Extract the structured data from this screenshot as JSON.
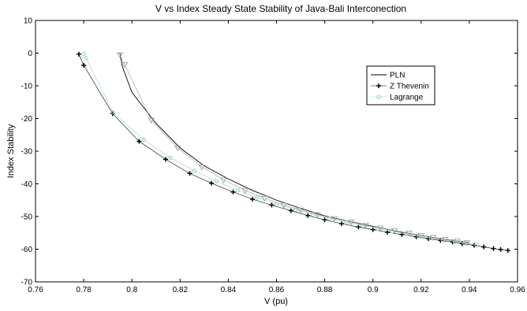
{
  "chart_data": {
    "type": "line",
    "title": "V vs Index Steady State Stability of Java-Bali Interconection",
    "xlabel": "V (pu)",
    "ylabel": "Index Stability",
    "xlim": [
      0.76,
      0.96
    ],
    "ylim": [
      -70,
      10
    ],
    "xticks": [
      0.76,
      0.78,
      0.8,
      0.82,
      0.84,
      0.86,
      0.88,
      0.9,
      0.92,
      0.94,
      0.96
    ],
    "yticks": [
      -70,
      -60,
      -50,
      -40,
      -30,
      -20,
      -10,
      0,
      10
    ],
    "xtick_labels": [
      "0.76",
      "0.78",
      "0.8",
      "0.82",
      "0.84",
      "0.86",
      "0.88",
      "0.9",
      "0.92",
      "0.94",
      "0.96"
    ],
    "ytick_labels": [
      "-70",
      "-60",
      "-50",
      "-40",
      "-30",
      "-20",
      "-10",
      "0",
      "10"
    ],
    "grid": false,
    "legend_position": "upper-right",
    "series": [
      {
        "name": "PLN",
        "color": "#000000",
        "marker": "none",
        "x": [
          0.795,
          0.796,
          0.8,
          0.81,
          0.82,
          0.83,
          0.84,
          0.85,
          0.86,
          0.87,
          0.88,
          0.89,
          0.9,
          0.91,
          0.92,
          0.93,
          0.94
        ],
        "y": [
          0.0,
          -4.0,
          -12.0,
          -21.5,
          -29.0,
          -34.5,
          -38.5,
          -42.0,
          -45.0,
          -47.5,
          -49.8,
          -51.5,
          -53.0,
          -54.5,
          -55.8,
          -57.0,
          -58.0
        ]
      },
      {
        "name": "Z Thevenin",
        "color": "#000000",
        "marker": "plus",
        "x": [
          0.778,
          0.78,
          0.792,
          0.803,
          0.814,
          0.824,
          0.833,
          0.842,
          0.85,
          0.858,
          0.866,
          0.873,
          0.88,
          0.887,
          0.894,
          0.9,
          0.906,
          0.912,
          0.918,
          0.923,
          0.928,
          0.933,
          0.937,
          0.942,
          0.946,
          0.95,
          0.953,
          0.956
        ],
        "y": [
          -0.3,
          -3.7,
          -18.5,
          -27.0,
          -32.5,
          -36.8,
          -39.8,
          -42.5,
          -44.7,
          -46.5,
          -48.2,
          -49.7,
          -51.0,
          -52.2,
          -53.2,
          -54.0,
          -54.8,
          -55.5,
          -56.2,
          -56.8,
          -57.3,
          -57.8,
          -58.3,
          -58.8,
          -59.3,
          -59.8,
          -60.1,
          -60.4
        ]
      },
      {
        "name": "Lagrange",
        "color": "#9cd4c0",
        "marker": "circle",
        "x": [
          0.78,
          0.781,
          0.792,
          0.805,
          0.816,
          0.826,
          0.835,
          0.844,
          0.852,
          0.86,
          0.868,
          0.875,
          0.882,
          0.889,
          0.896,
          0.902,
          0.908,
          0.914,
          0.919,
          0.924,
          0.929,
          0.934,
          0.938,
          0.943
        ],
        "y": [
          -0.2,
          -1.5,
          -18.0,
          -26.5,
          -32.0,
          -36.0,
          -39.2,
          -42.0,
          -44.2,
          -46.2,
          -47.9,
          -49.3,
          -50.6,
          -51.8,
          -52.8,
          -53.7,
          -54.5,
          -55.3,
          -56.0,
          -56.6,
          -57.2,
          -57.7,
          -58.2,
          -58.6
        ]
      },
      {
        "name": "",
        "color": "#9a9a9a",
        "marker": "triangle-down",
        "x": [
          0.795,
          0.797,
          0.808,
          0.819,
          0.829,
          0.838,
          0.847,
          0.855,
          0.863,
          0.87,
          0.877,
          0.884,
          0.891,
          0.897,
          0.903,
          0.909,
          0.915,
          0.92,
          0.925,
          0.93,
          0.935,
          0.939
        ],
        "y": [
          -0.5,
          -3.5,
          -20.5,
          -29.0,
          -34.8,
          -38.8,
          -42.0,
          -44.4,
          -46.5,
          -48.0,
          -49.4,
          -50.6,
          -51.7,
          -52.7,
          -53.5,
          -54.3,
          -55.1,
          -55.8,
          -56.4,
          -57.0,
          -57.5,
          -58.0
        ]
      }
    ]
  }
}
